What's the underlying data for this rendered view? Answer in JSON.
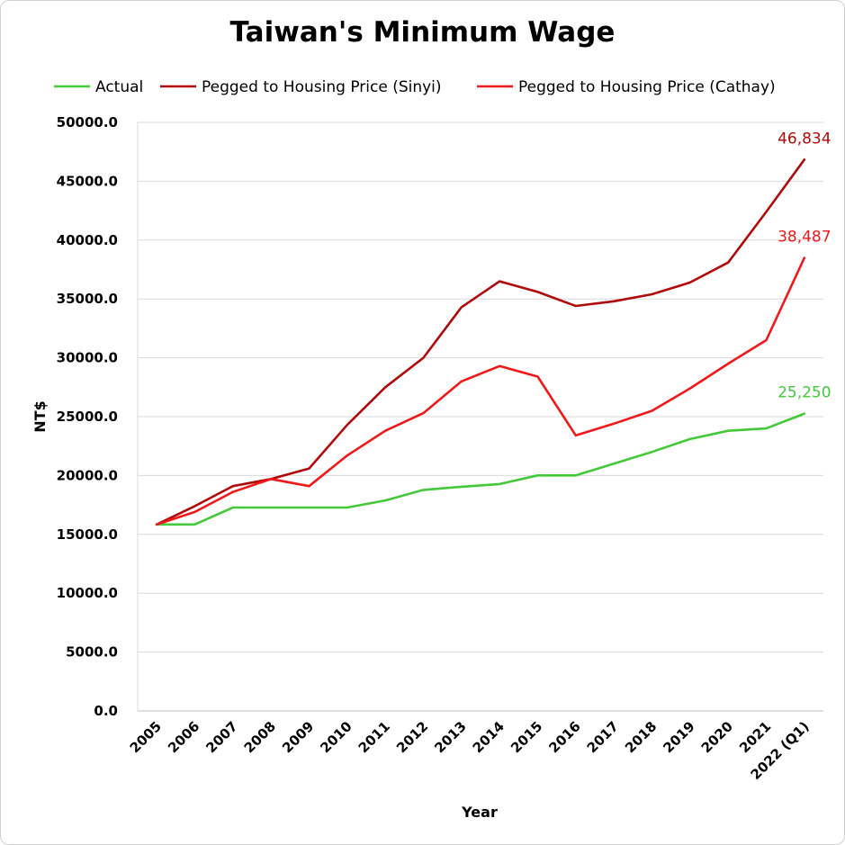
{
  "chart_data": {
    "type": "line",
    "title": "Taiwan's Minimum Wage",
    "xlabel": "Year",
    "ylabel": "NT$",
    "ylim": [
      0,
      50000
    ],
    "yticks": [
      "0.0",
      "5000.0",
      "10000.0",
      "15000.0",
      "20000.0",
      "25000.0",
      "30000.0",
      "35000.0",
      "40000.0",
      "45000.0",
      "50000.0"
    ],
    "categories": [
      "2005",
      "2006",
      "2007",
      "2008",
      "2009",
      "2010",
      "2011",
      "2012",
      "2013",
      "2014",
      "2015",
      "2016",
      "2017",
      "2018",
      "2019",
      "2020",
      "2021",
      "2022 (Q1)"
    ],
    "grid": "horizontal",
    "legend_position": "top",
    "series": [
      {
        "name": "Actual",
        "color": "#44c93a",
        "values": [
          15840,
          15840,
          17280,
          17280,
          17280,
          17280,
          17880,
          18780,
          19047,
          19273,
          20008,
          20008,
          21009,
          22000,
          23100,
          23800,
          24000,
          25250
        ],
        "end_label": "25,250"
      },
      {
        "name": "Pegged to Housing Price (Sinyi)",
        "color": "#b10a0a",
        "values": [
          15840,
          17400,
          19100,
          19700,
          20600,
          24300,
          27500,
          30000,
          34300,
          36500,
          35600,
          34400,
          34800,
          35400,
          36400,
          38100,
          42400,
          46834
        ],
        "end_label": "46,834"
      },
      {
        "name": "Pegged to Housing Price (Cathay)",
        "color": "#f01818",
        "values": [
          15840,
          16900,
          18600,
          19700,
          19100,
          21700,
          23800,
          25300,
          28000,
          29300,
          28400,
          23400,
          24400,
          25500,
          27400,
          29500,
          31500,
          38487
        ],
        "end_label": "38,487"
      }
    ]
  }
}
